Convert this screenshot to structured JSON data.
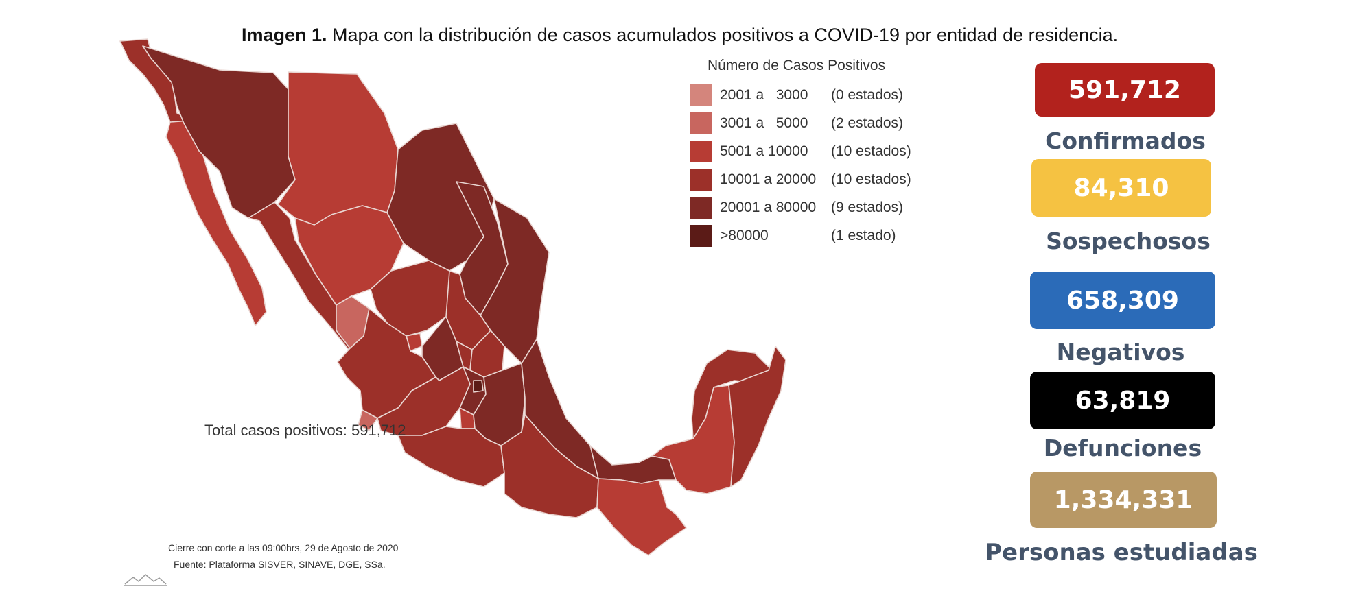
{
  "caption": {
    "bold": "Imagen 1.",
    "text": " Mapa con la distribución de casos acumulados positivos a COVID-19 por entidad de residencia."
  },
  "legend": {
    "title": "Número de Casos Positivos",
    "items": [
      {
        "range": "2001 a   3000",
        "count": "(0 estados)",
        "color": "#d4857c"
      },
      {
        "range": "3001 a   5000",
        "count": "(2 estados)",
        "color": "#c8665f"
      },
      {
        "range": "5001 a 10000",
        "count": "(10 estados)",
        "color": "#b73c34"
      },
      {
        "range": "10001 a 20000",
        "count": "(10 estados)",
        "color": "#9c3029"
      },
      {
        "range": "20001 a 80000",
        "count": "(9 estados)",
        "color": "#7e2925"
      },
      {
        "range": ">80000",
        "count": "(1 estado)",
        "color": "#5b1b17"
      }
    ]
  },
  "total_text": "Total casos positivos: 591,712",
  "footer": {
    "cutoff": "Cierre con corte a las 09:00hrs, 29 de Agosto de 2020",
    "source": "Fuente: Plataforma SISVER, SINAVE, DGE, SSa."
  },
  "stats": [
    {
      "value": "591,712",
      "label": "Confirmados",
      "color": "#b2221d"
    },
    {
      "value": "84,310",
      "label": "Sospechosos",
      "color": "#f5c242"
    },
    {
      "value": "658,309",
      "label": "Negativos",
      "color": "#2b6bb8"
    },
    {
      "value": "63,819",
      "label": "Defunciones",
      "color": "#000000"
    },
    {
      "value": "1,334,331",
      "label": "Personas estudiadas",
      "color": "#b89865"
    }
  ],
  "map_colors": {
    "border": "#e9d6d2",
    "class_3001_5000": "#c8665f",
    "class_5001_10000": "#b73c34",
    "class_10001_20000": "#9c3029",
    "class_20001_80000": "#7e2925",
    "class_over_80000": "#5b1b17"
  }
}
